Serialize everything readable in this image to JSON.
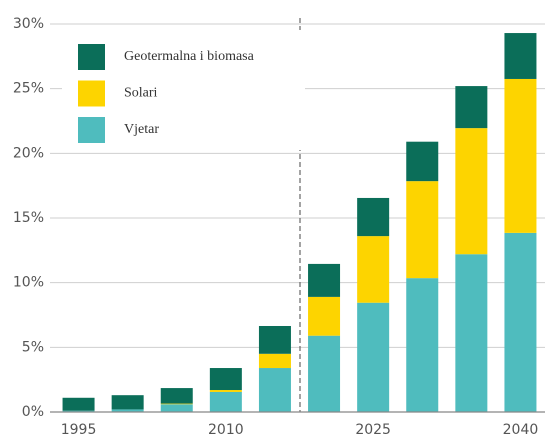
{
  "chart_data": {
    "type": "stacked_bar",
    "categories": [
      "1995",
      null,
      null,
      "2010",
      null,
      null,
      "2025",
      null,
      null,
      "2040"
    ],
    "series": [
      {
        "name": "Vjetar",
        "color": "#4fbcbe",
        "values": [
          0.1,
          0.2,
          0.6,
          1.55,
          3.4,
          5.9,
          8.45,
          10.35,
          12.2,
          13.85
        ]
      },
      {
        "name": "Solari",
        "color": "#fdd400",
        "values": [
          0,
          0,
          0.05,
          0.15,
          1.1,
          3.0,
          5.15,
          7.5,
          9.75,
          11.9
        ]
      },
      {
        "name": "Geotermalna i biomasa",
        "color": "#0b6e59",
        "values": [
          1.0,
          1.1,
          1.2,
          1.7,
          2.15,
          2.55,
          2.95,
          3.05,
          3.25,
          3.55
        ]
      }
    ],
    "ylim": [
      0,
      30
    ],
    "yticks": [
      {
        "value": 0,
        "label": "0%"
      },
      {
        "value": 5,
        "label": "5%"
      },
      {
        "value": 10,
        "label": "10%"
      },
      {
        "value": 15,
        "label": "15%"
      },
      {
        "value": 20,
        "label": "20%"
      },
      {
        "value": 25,
        "label": "25%"
      },
      {
        "value": 30,
        "label": "30%"
      }
    ],
    "grid": true,
    "legend": "upper left"
  }
}
